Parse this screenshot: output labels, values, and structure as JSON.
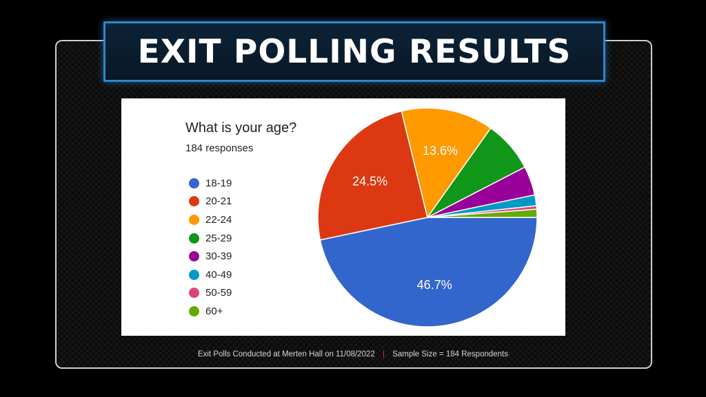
{
  "title": "EXIT POLLING RESULTS",
  "question": "What is your age?",
  "responses": "184 responses",
  "footer": {
    "left": "Exit Polls Conducted at Merten Hall on 11/08/2022",
    "separator": "|",
    "right": "Sample Size = 184 Respondents"
  },
  "chart_data": {
    "type": "pie",
    "title": "What is your age?",
    "subtitle": "184 responses",
    "legend_position": "left",
    "categories": [
      "18-19",
      "20-21",
      "22-24",
      "25-29",
      "30-39",
      "40-49",
      "50-59",
      "60+"
    ],
    "values": [
      46.7,
      24.5,
      13.6,
      7.6,
      4.3,
      1.6,
      0.5,
      1.2
    ],
    "labels": [
      "46.7%",
      "24.5%",
      "13.6%",
      "",
      "",
      "",
      "",
      ""
    ],
    "colors": [
      "#3366cc",
      "#dc3912",
      "#ff9900",
      "#109618",
      "#990099",
      "#0099c6",
      "#dd4477",
      "#66aa00"
    ]
  }
}
